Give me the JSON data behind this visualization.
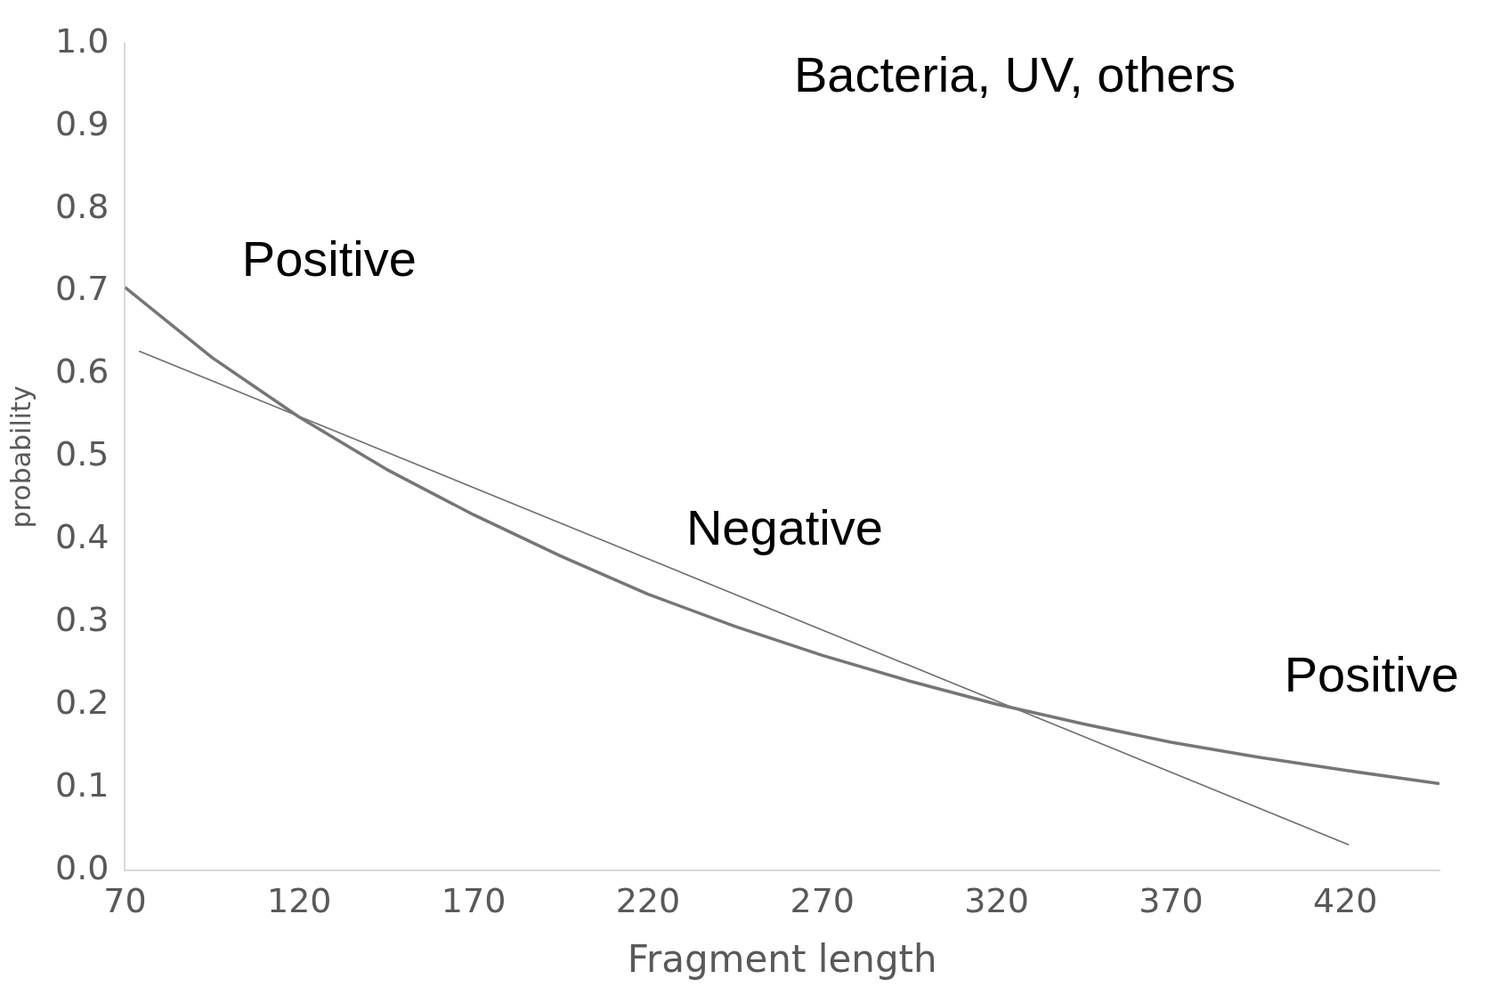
{
  "chart_data": {
    "type": "line",
    "title": "Bacteria, UV, others",
    "xlabel": "Fragment length",
    "ylabel": "probability",
    "annotations": [
      "Positive",
      "Negative",
      "Positive"
    ],
    "series": [
      {
        "color": "#767676",
        "x": [
          70,
          95,
          120,
          145,
          170,
          195,
          220,
          245,
          270,
          295,
          320,
          345,
          370,
          395,
          420,
          447
        ],
        "values": [
          0.705,
          0.62,
          0.548,
          0.485,
          0.43,
          0.38,
          0.334,
          0.295,
          0.26,
          0.229,
          0.201,
          0.177,
          0.155,
          0.137,
          0.121,
          0.105
        ]
      },
      {
        "color": "#6e6e6e",
        "x": [
          74,
          421
        ],
        "values": [
          0.628,
          0.031
        ]
      }
    ],
    "xlim": [
      70,
      447
    ],
    "xticks": [
      70,
      120,
      170,
      220,
      270,
      320,
      370,
      420
    ],
    "ylim": [
      0,
      1
    ],
    "yticks": [
      {
        "value": 0,
        "label": "0.0"
      },
      {
        "value": 0.1,
        "label": "0.1"
      },
      {
        "value": 0.2,
        "label": "0.2"
      },
      {
        "value": 0.3,
        "label": "0.3"
      },
      {
        "value": 0.4,
        "label": "0.4"
      },
      {
        "value": 0.5,
        "label": "0.5"
      },
      {
        "value": 0.6,
        "label": "0.6"
      },
      {
        "value": 0.7,
        "label": "0.7"
      },
      {
        "value": 0.8,
        "label": "0.8"
      },
      {
        "value": 0.9,
        "label": "0.9"
      },
      {
        "value": 1,
        "label": "1.0"
      }
    ],
    "grid": false,
    "legend": false,
    "marker": "none",
    "line_style": "solid"
  }
}
